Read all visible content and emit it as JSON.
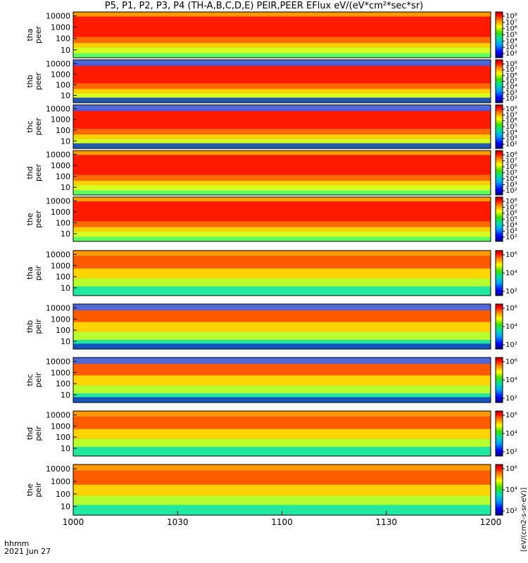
{
  "title": "P5, P1, P2, P3, P4 (TH-A,B,C,D,E) PEIR,PEER EFlux eV/(eV*cm²*sec*sr)",
  "footer": {
    "time_label": "hhmm",
    "date_label": "2021 Jun 27"
  },
  "units_label": "[eV/(cm2-s-sr-eV)]",
  "colors": {
    "dark_red": "#8b0000",
    "red": "#ff0000",
    "orange": "#ff8c00",
    "yellow": "#ffff00",
    "green": "#00d000",
    "cyan": "#00c8c8",
    "blue": "#0000ff",
    "navy": "#000070"
  },
  "chart_data": {
    "type": "heatmap",
    "x_ticks": [
      "1000",
      "1030",
      "1100",
      "1130",
      "1200"
    ],
    "x_range": [
      "10:00",
      "12:00"
    ],
    "y_scale": "log",
    "y_ticks": [
      "10000",
      "1000",
      "100",
      "10"
    ],
    "colorbar_ticks_electron": [
      "10⁸",
      "10⁷",
      "10⁶",
      "10⁵",
      "10⁴",
      "10³",
      "10²"
    ],
    "colorbar_ticks_ion": [
      "10⁶",
      "10⁴",
      "10²"
    ],
    "panels": [
      {
        "label1": "tha",
        "label2": "peer",
        "kind": "electron"
      },
      {
        "label1": "thb",
        "label2": "peer",
        "kind": "electron"
      },
      {
        "label1": "thc",
        "label2": "peer",
        "kind": "electron"
      },
      {
        "label1": "thd",
        "label2": "peer",
        "kind": "electron"
      },
      {
        "label1": "the",
        "label2": "peer",
        "kind": "electron"
      },
      {
        "label1": "tha",
        "label2": "peir",
        "kind": "ion"
      },
      {
        "label1": "thb",
        "label2": "peir",
        "kind": "ion"
      },
      {
        "label1": "thc",
        "label2": "peir",
        "kind": "ion"
      },
      {
        "label1": "thd",
        "label2": "peir",
        "kind": "ion"
      },
      {
        "label1": "the",
        "label2": "peir",
        "kind": "ion"
      }
    ]
  }
}
